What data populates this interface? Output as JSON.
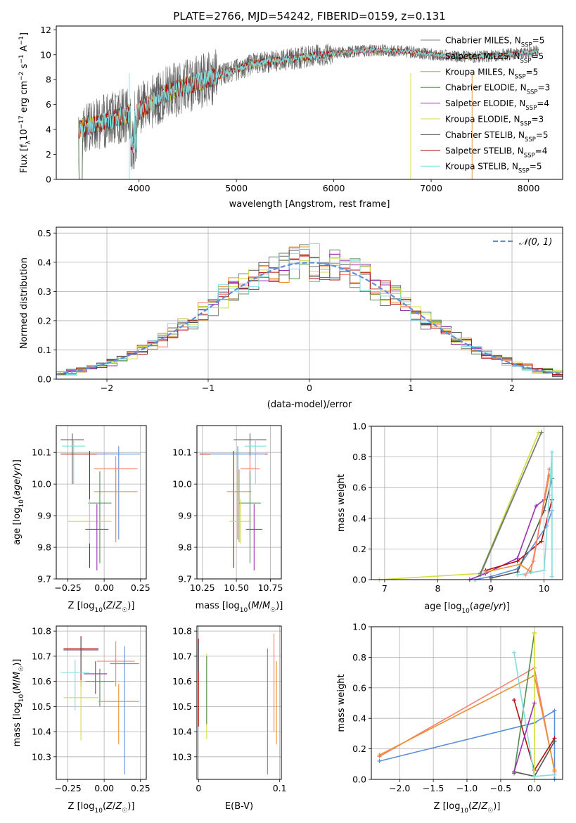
{
  "figure": {
    "title": "PLATE=2766, MJD=54242, FIBERID=0159, z=0.131"
  },
  "chart_data": [
    {
      "id": "spectrum",
      "type": "line",
      "xlabel": "wavelength [Angstrom, rest frame]",
      "ylabel": "Flux [f_λ10^-17 erg cm^-2 s^-1 A^-1]",
      "xlim": [
        3150,
        8350
      ],
      "ylim": [
        0,
        12.3
      ],
      "xticks": [
        4000,
        5000,
        6000,
        7000,
        8000
      ],
      "yticks": [
        0,
        2,
        4,
        6,
        8,
        10,
        12
      ],
      "grid": false,
      "legend_position": "right",
      "data_range": [
        3380,
        8100
      ],
      "series": [
        {
          "name": "Chabrier MILES, N_SSP=5",
          "label_main": "Chabrier MILES, N",
          "sub": "SSP",
          "tail": "=5",
          "color": "#7f7f7f"
        },
        {
          "name": "Salpeter MILES, N_SSP=5",
          "label_main": "Salpeter MILES, N",
          "sub": "SSP",
          "tail": "=5",
          "color": "#ff7f6e"
        },
        {
          "name": "Kroupa MILES, N_SSP=5",
          "label_main": "Kroupa MILES, N",
          "sub": "SSP",
          "tail": "=5",
          "color": "#e8912e"
        },
        {
          "name": "Chabrier ELODIE, N_SSP=3",
          "label_main": "Chabrier ELODIE, N",
          "sub": "SSP",
          "tail": "=3",
          "color": "#4f8f4f"
        },
        {
          "name": "Salpeter ELODIE, N_SSP=4",
          "label_main": "Salpeter ELODIE, N",
          "sub": "SSP",
          "tail": "=4",
          "color": "#9b30b0"
        },
        {
          "name": "Kroupa ELODIE, N_SSP=3",
          "label_main": "Kroupa ELODIE, N",
          "sub": "SSP",
          "tail": "=3",
          "color": "#d4dc40"
        },
        {
          "name": "Chabrier STELIB, N_SSP=5",
          "label_main": "Chabrier STELIB, N",
          "sub": "SSP",
          "tail": "=5",
          "color": "#555555"
        },
        {
          "name": "Salpeter STELIB, N_SSP=4",
          "label_main": "Salpeter STELIB, N",
          "sub": "SSP",
          "tail": "=4",
          "color": "#b01010"
        },
        {
          "name": "Kroupa STELIB, N_SSP=5",
          "label_main": "Kroupa STELIB, N",
          "sub": "SSP",
          "tail": "=5",
          "color": "#7fdde0"
        }
      ]
    },
    {
      "id": "residuals",
      "type": "bar",
      "xlabel": "(data-model)/error",
      "ylabel": "Normed distribution",
      "xlim": [
        -2.5,
        2.5
      ],
      "ylim": [
        0,
        0.52
      ],
      "xticks": [
        -2,
        -1,
        0,
        1,
        2
      ],
      "yticks": [
        0.0,
        0.1,
        0.2,
        0.3,
        0.4,
        0.5
      ],
      "grid": true,
      "legend_position": "top-right",
      "legend": "𝒩(0, 1)",
      "bin_width": 0.1,
      "bin_start": -2.5,
      "gaussian": {
        "mean": 0,
        "sigma": 1,
        "color": "#5b8fdc"
      },
      "hist_colors": [
        "#7f7f7f",
        "#ff7f6e",
        "#e8912e",
        "#4f8f4f",
        "#9b30b0",
        "#d4dc40",
        "#555555",
        "#b01010",
        "#7fdde0"
      ]
    },
    {
      "id": "age_vs_Z",
      "type": "scatter",
      "xlabel": "Z [log10(Z/Z☉)]",
      "ylabel": "age [log10(age/yr)]",
      "xlim": [
        -0.33,
        0.29
      ],
      "ylim": [
        9.7,
        10.185
      ],
      "xticks": [
        -0.25,
        0.0,
        0.25
      ],
      "yticks": [
        9.7,
        9.8,
        9.9,
        10.0,
        10.1
      ],
      "grid": true,
      "points": [
        {
          "x": -0.22,
          "xerr": 0.08,
          "y": 10.14,
          "yerr": [
            0.14,
            0.02
          ],
          "color": "#555555"
        },
        {
          "x": -0.21,
          "xerr": 0.08,
          "y": 10.12,
          "yerr": [
            0.12,
            0.02
          ],
          "color": "#7fdde0"
        },
        {
          "x": -0.1,
          "xerr": 0.2,
          "y": 10.095,
          "yerr": [
            0.36,
            0.01
          ],
          "color": "#b01010"
        },
        {
          "x": 0.1,
          "xerr": 0.15,
          "y": 10.095,
          "yerr": [
            0.27,
            0.025
          ],
          "color": "#5b8fdc"
        },
        {
          "x": 0.08,
          "xerr": 0.15,
          "y": 10.048,
          "yerr": [
            0.22,
            0.04
          ],
          "color": "#ff7f6e"
        },
        {
          "x": 0.08,
          "xerr": 0.15,
          "y": 9.976,
          "yerr": [
            0.16,
            0.07
          ],
          "color": "#e8912e"
        },
        {
          "x": -0.03,
          "xerr": 0.08,
          "y": 9.94,
          "yerr": [
            0.19,
            0.1
          ],
          "color": "#4f8f4f"
        },
        {
          "x": -0.1,
          "xerr": 0.15,
          "y": 9.882,
          "yerr": [
            0.07,
            0.07
          ],
          "color": "#d4dc40"
        },
        {
          "x": -0.05,
          "xerr": 0.08,
          "y": 9.857,
          "yerr": [
            0.13,
            0.08
          ],
          "color": "#9b30b0"
        }
      ]
    },
    {
      "id": "age_vs_mass",
      "type": "scatter",
      "xlabel": "mass [log10(M/M☉)]",
      "ylabel": "",
      "xlim": [
        10.21,
        10.83
      ],
      "ylim": [
        9.7,
        10.185
      ],
      "xticks": [
        10.25,
        10.5,
        10.75
      ],
      "yticks": [
        9.7,
        9.8,
        9.9,
        10.0,
        10.1
      ],
      "grid": true,
      "points": [
        {
          "x": 10.6,
          "xerr": 0.12,
          "y": 10.14,
          "yerr": [
            0.14,
            0.02
          ],
          "color": "#555555"
        },
        {
          "x": 10.64,
          "xerr": 0.08,
          "y": 10.12,
          "yerr": [
            0.12,
            0.02
          ],
          "color": "#7fdde0"
        },
        {
          "x": 10.48,
          "xerr": 0.25,
          "y": 10.095,
          "yerr": [
            0.36,
            0.01
          ],
          "color": "#b01010"
        },
        {
          "x": 10.51,
          "xerr": 0.2,
          "y": 10.095,
          "yerr": [
            0.27,
            0.025
          ],
          "color": "#5b8fdc"
        },
        {
          "x": 10.6,
          "xerr": 0.07,
          "y": 10.048,
          "yerr": [
            0.22,
            0.04
          ],
          "color": "#ff7f6e"
        },
        {
          "x": 10.52,
          "xerr": 0.09,
          "y": 9.976,
          "yerr": [
            0.16,
            0.07
          ],
          "color": "#e8912e"
        },
        {
          "x": 10.6,
          "xerr": 0.08,
          "y": 9.94,
          "yerr": [
            0.19,
            0.1
          ],
          "color": "#4f8f4f"
        },
        {
          "x": 10.53,
          "xerr": 0.08,
          "y": 9.882,
          "yerr": [
            0.07,
            0.07
          ],
          "color": "#d4dc40"
        },
        {
          "x": 10.63,
          "xerr": 0.06,
          "y": 9.857,
          "yerr": [
            0.13,
            0.08
          ],
          "color": "#9b30b0"
        }
      ]
    },
    {
      "id": "mass_weight_vs_age",
      "type": "line",
      "xlabel": "age [log10(age/yr)]",
      "ylabel": "mass weight",
      "xlim": [
        6.75,
        10.35
      ],
      "ylim": [
        0,
        1.0
      ],
      "xticks": [
        7,
        8,
        9,
        10
      ],
      "yticks": [
        0.0,
        0.2,
        0.4,
        0.6,
        0.8,
        1.0
      ],
      "grid": true,
      "series": [
        {
          "color": "#d4dc40",
          "x": [
            6.9,
            8.8,
            9.9
          ],
          "y": [
            0.0,
            0.04,
            0.96
          ]
        },
        {
          "color": "#4f8f4f",
          "x": [
            8.8,
            9.95
          ],
          "y": [
            0.04,
            0.96
          ]
        },
        {
          "color": "#7f7f7f",
          "x": [
            8.8,
            9.95
          ],
          "y": [
            0.03,
            0.96
          ]
        },
        {
          "color": "#9b30b0",
          "x": [
            8.6,
            8.9,
            9.5,
            9.85,
            10.0
          ],
          "y": [
            0.0,
            0.04,
            0.14,
            0.48,
            0.52
          ]
        },
        {
          "color": "#b01010",
          "x": [
            8.9,
            9.5,
            9.95,
            10.15
          ],
          "y": [
            0.06,
            0.12,
            0.25,
            0.52
          ]
        },
        {
          "color": "#5b8fdc",
          "x": [
            8.7,
            9.0,
            9.5,
            10.05,
            10.15
          ],
          "y": [
            0.0,
            0.02,
            0.07,
            0.35,
            0.45
          ]
        },
        {
          "color": "#555555",
          "x": [
            9.0,
            9.5,
            10.0,
            10.15
          ],
          "y": [
            0.01,
            0.05,
            0.45,
            0.66
          ]
        },
        {
          "color": "#e8912e",
          "x": [
            8.9,
            9.55,
            9.75,
            10.1
          ],
          "y": [
            0.05,
            0.1,
            0.05,
            0.68
          ]
        },
        {
          "color": "#ff7f6e",
          "x": [
            9.65,
            9.8,
            10.1
          ],
          "y": [
            0.03,
            0.12,
            0.72
          ]
        },
        {
          "color": "#7fdde0",
          "x": [
            9.5,
            10.0,
            10.1,
            10.15,
            10.15
          ],
          "y": [
            0.03,
            0.06,
            0.55,
            0.83,
            0.02
          ]
        }
      ]
    },
    {
      "id": "mass_vs_Z",
      "type": "scatter",
      "xlabel": "Z [log10(Z/Z☉)]",
      "ylabel": "mass [log10(M/M☉)]",
      "xlim": [
        -0.33,
        0.29
      ],
      "ylim": [
        10.21,
        10.82
      ],
      "xticks": [
        -0.25,
        0.0,
        0.25
      ],
      "yticks": [
        10.3,
        10.4,
        10.5,
        10.6,
        10.7,
        10.8
      ],
      "grid": true,
      "points": [
        {
          "x": -0.16,
          "xerr": 0.12,
          "y": 10.73,
          "yerr": [
            0.15,
            0.05
          ],
          "color": "#b01010"
        },
        {
          "x": -0.16,
          "xerr": 0.12,
          "y": 10.725,
          "yerr": [
            0.09,
            0.05
          ],
          "color": "#555555"
        },
        {
          "x": 0.08,
          "xerr": 0.13,
          "y": 10.68,
          "yerr": [
            0.1,
            0.08
          ],
          "color": "#ff7f6e"
        },
        {
          "x": 0.14,
          "xerr": 0.1,
          "y": 10.67,
          "yerr": [
            0.44,
            0.07
          ],
          "color": "#5b8fdc"
        },
        {
          "x": -0.2,
          "xerr": 0.1,
          "y": 10.635,
          "yerr": [
            0.15,
            0.05
          ],
          "color": "#7fdde0"
        },
        {
          "x": -0.06,
          "xerr": 0.08,
          "y": 10.63,
          "yerr": [
            0.08,
            0.05
          ],
          "color": "#9b30b0"
        },
        {
          "x": -0.03,
          "xerr": 0.1,
          "y": 10.6,
          "yerr": [
            0.1,
            0.05
          ],
          "color": "#4f8f4f"
        },
        {
          "x": -0.16,
          "xerr": 0.12,
          "y": 10.535,
          "yerr": [
            0.17,
            0.07
          ],
          "color": "#d4dc40"
        },
        {
          "x": 0.1,
          "xerr": 0.14,
          "y": 10.52,
          "yerr": [
            0.17,
            0.07
          ],
          "color": "#e8912e"
        }
      ]
    },
    {
      "id": "mass_vs_ebv",
      "type": "scatter",
      "xlabel": "E(B-V)",
      "ylabel": "",
      "xlim": [
        -0.002,
        0.102
      ],
      "ylim": [
        10.21,
        10.82
      ],
      "xticks": [
        0.0,
        0.1
      ],
      "yticks": [
        10.3,
        10.4,
        10.5,
        10.6,
        10.7,
        10.8
      ],
      "grid": true,
      "points": [
        {
          "x": 0.0,
          "y": 10.62,
          "yerr": [
            0.2,
            0.15
          ],
          "color": "#b01010"
        },
        {
          "x": 0.0,
          "y": 10.7,
          "yerr": [
            0.06,
            0.06
          ],
          "color": "#555555"
        },
        {
          "x": 0.01,
          "y": 10.59,
          "yerr": [
            0.22,
            0.12
          ],
          "color": "#d4dc40"
        },
        {
          "x": 0.01,
          "y": 10.6,
          "yerr": [
            0.17,
            0.1
          ],
          "color": "#4f8f4f"
        },
        {
          "x": 0.085,
          "y": 10.49,
          "yerr": [
            0.26,
            0.24
          ],
          "color": "#5b8fdc"
        },
        {
          "x": 0.093,
          "y": 10.6,
          "yerr": [
            0.2,
            0.19
          ],
          "color": "#ff7f6e"
        },
        {
          "x": 0.096,
          "y": 10.52,
          "yerr": [
            0.17,
            0.16
          ],
          "color": "#e8912e"
        }
      ]
    },
    {
      "id": "mass_weight_vs_Z",
      "type": "line",
      "xlabel": "Z [log10(Z/Z☉)]",
      "ylabel": "mass weight",
      "xlim": [
        -2.42,
        0.42
      ],
      "ylim": [
        0,
        1.0
      ],
      "xticks": [
        -2.0,
        -1.5,
        -1.0,
        -0.5,
        0.0
      ],
      "yticks": [
        0.0,
        0.2,
        0.4,
        0.6,
        0.8,
        1.0
      ],
      "grid": true,
      "series": [
        {
          "color": "#5b8fdc",
          "x": [
            -2.3,
            0.0,
            0.3,
            0.3
          ],
          "y": [
            0.12,
            0.37,
            0.45,
            0.0
          ]
        },
        {
          "color": "#ff7f6e",
          "x": [
            -2.3,
            0.0,
            0.3
          ],
          "y": [
            0.15,
            0.73,
            0.05
          ]
        },
        {
          "color": "#e8912e",
          "x": [
            -2.3,
            0.0,
            0.3
          ],
          "y": [
            0.16,
            0.68,
            0.06
          ]
        },
        {
          "color": "#b01010",
          "x": [
            -0.3,
            0.0,
            0.3
          ],
          "y": [
            0.52,
            0.06,
            0.27
          ]
        },
        {
          "color": "#555555",
          "x": [
            -0.3,
            0.0,
            0.3
          ],
          "y": [
            0.05,
            0.02,
            0.25
          ]
        },
        {
          "color": "#4f8f4f",
          "x": [
            -0.3,
            0.0
          ],
          "y": [
            0.04,
            0.96
          ]
        },
        {
          "color": "#d4dc40",
          "x": [
            0.0,
            0.0
          ],
          "y": [
            0.0,
            0.96
          ]
        },
        {
          "color": "#7fdde0",
          "x": [
            -0.3,
            0.0,
            0.3
          ],
          "y": [
            0.83,
            0.02,
            0.03
          ]
        },
        {
          "color": "#9b30b0",
          "x": [
            -0.3,
            0.0
          ],
          "y": [
            0.05,
            0.5
          ]
        }
      ]
    }
  ]
}
